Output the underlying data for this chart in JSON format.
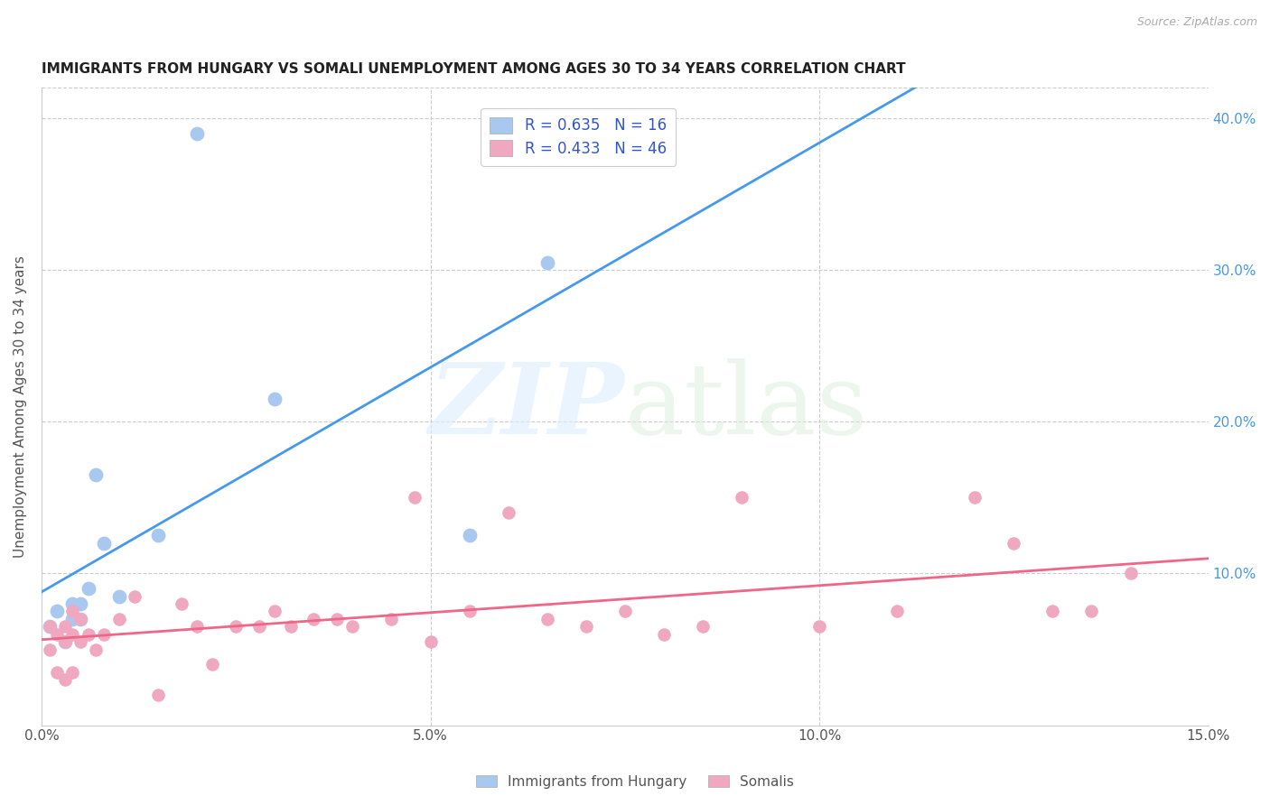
{
  "title": "IMMIGRANTS FROM HUNGARY VS SOMALI UNEMPLOYMENT AMONG AGES 30 TO 34 YEARS CORRELATION CHART",
  "source": "Source: ZipAtlas.com",
  "ylabel": "Unemployment Among Ages 30 to 34 years",
  "xlim": [
    0.0,
    0.15
  ],
  "ylim": [
    0.0,
    0.42
  ],
  "xticks": [
    0.0,
    0.05,
    0.1,
    0.15
  ],
  "xtick_labels": [
    "0.0%",
    "5.0%",
    "10.0%",
    "15.0%"
  ],
  "yticks": [
    0.0,
    0.1,
    0.2,
    0.3,
    0.4
  ],
  "ytick_labels_right": [
    "",
    "10.0%",
    "20.0%",
    "30.0%",
    "40.0%"
  ],
  "R_hungary": 0.635,
  "N_hungary": 16,
  "R_somali": 0.433,
  "N_somali": 46,
  "hungary_color": "#a8c8f0",
  "somali_color": "#f0a8c0",
  "hungary_line_color": "#4499ee",
  "somali_line_color": "#ee6688",
  "legend_text_color": "#3355cc",
  "hungary_x": [
    0.001,
    0.002,
    0.003,
    0.004,
    0.004,
    0.005,
    0.005,
    0.006,
    0.007,
    0.008,
    0.01,
    0.015,
    0.02,
    0.03,
    0.055,
    0.065
  ],
  "hungary_y": [
    0.065,
    0.075,
    0.055,
    0.07,
    0.08,
    0.08,
    0.07,
    0.09,
    0.165,
    0.12,
    0.085,
    0.125,
    0.39,
    0.215,
    0.125,
    0.305
  ],
  "somali_x": [
    0.001,
    0.001,
    0.002,
    0.002,
    0.003,
    0.003,
    0.003,
    0.004,
    0.004,
    0.004,
    0.005,
    0.005,
    0.006,
    0.007,
    0.008,
    0.01,
    0.012,
    0.015,
    0.018,
    0.02,
    0.022,
    0.025,
    0.028,
    0.03,
    0.032,
    0.035,
    0.038,
    0.04,
    0.045,
    0.048,
    0.05,
    0.055,
    0.06,
    0.065,
    0.07,
    0.075,
    0.08,
    0.085,
    0.09,
    0.1,
    0.11,
    0.12,
    0.125,
    0.13,
    0.135,
    0.14
  ],
  "somali_y": [
    0.05,
    0.065,
    0.035,
    0.06,
    0.03,
    0.055,
    0.065,
    0.035,
    0.06,
    0.075,
    0.07,
    0.055,
    0.06,
    0.05,
    0.06,
    0.07,
    0.085,
    0.02,
    0.08,
    0.065,
    0.04,
    0.065,
    0.065,
    0.075,
    0.065,
    0.07,
    0.07,
    0.065,
    0.07,
    0.15,
    0.055,
    0.075,
    0.14,
    0.07,
    0.065,
    0.075,
    0.06,
    0.065,
    0.15,
    0.065,
    0.075,
    0.15,
    0.12,
    0.075,
    0.075,
    0.1
  ]
}
